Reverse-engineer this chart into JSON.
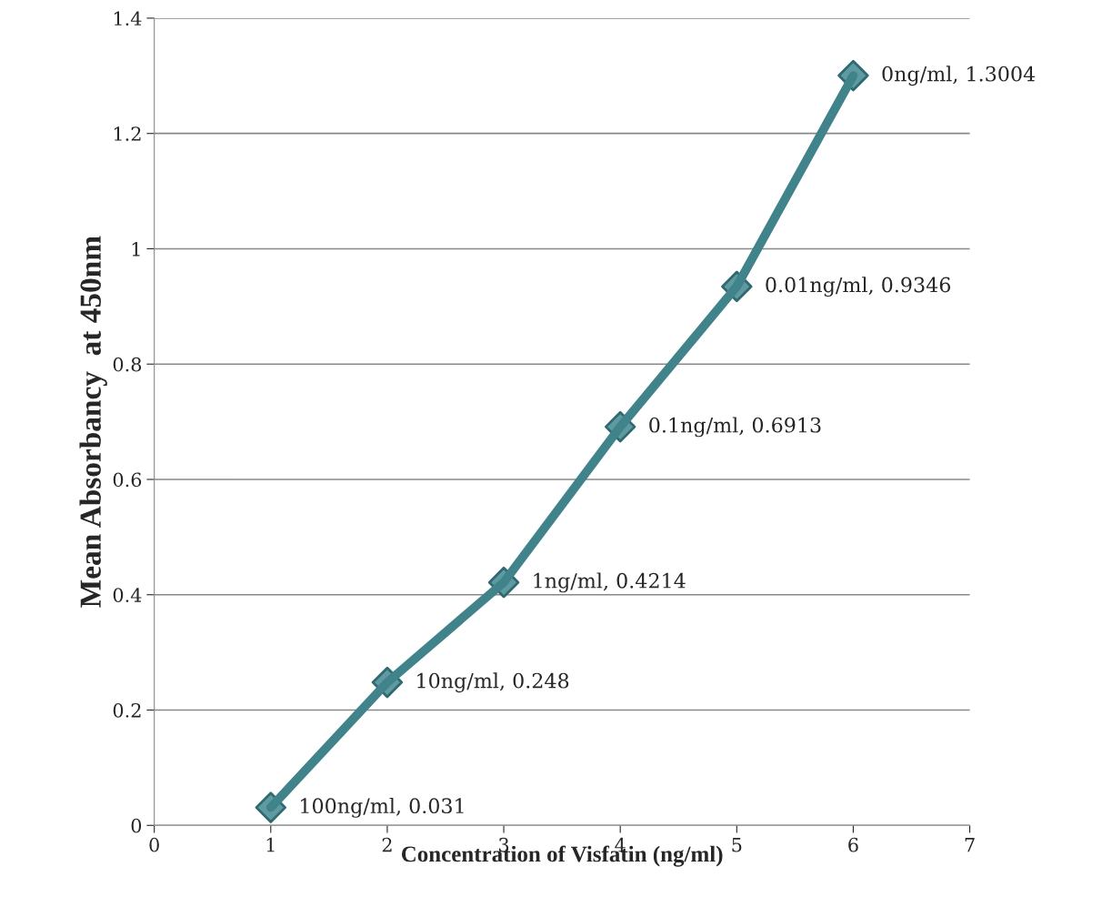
{
  "chart_data": {
    "type": "line",
    "xlabel": "Concentration of Visfatin (ng/ml)",
    "ylabel": "Mean Absorbancy  at 450nm",
    "x": [
      1,
      2,
      3,
      4,
      5,
      6
    ],
    "series": [
      {
        "color": "#41838a",
        "values": [
          0.031,
          0.248,
          0.4214,
          0.6913,
          0.9346,
          1.3004
        ]
      }
    ],
    "xlim": [
      0,
      7
    ],
    "xticks": [
      0,
      1,
      2,
      3,
      4,
      5,
      6,
      7
    ],
    "ylim": [
      0,
      1.4
    ],
    "yticks": [
      0,
      0.2,
      0.4,
      0.6,
      0.8,
      1,
      1.2,
      1.4
    ],
    "grid": "y",
    "marker": "diamond",
    "line_style": "solid",
    "legend": false,
    "annotations": [
      {
        "text": "100ng/ml, 0.031",
        "x": 1,
        "y": 0.031
      },
      {
        "text": "10ng/ml, 0.248",
        "x": 2,
        "y": 0.248
      },
      {
        "text": "1ng/ml, 0.4214",
        "x": 3,
        "y": 0.4214
      },
      {
        "text": "0.1ng/ml, 0.6913",
        "x": 4,
        "y": 0.6913
      },
      {
        "text": "0.01ng/ml, 0.9346",
        "x": 5,
        "y": 0.9346
      },
      {
        "text": "0ng/ml, 1.3004",
        "x": 6,
        "y": 1.3004
      }
    ]
  }
}
